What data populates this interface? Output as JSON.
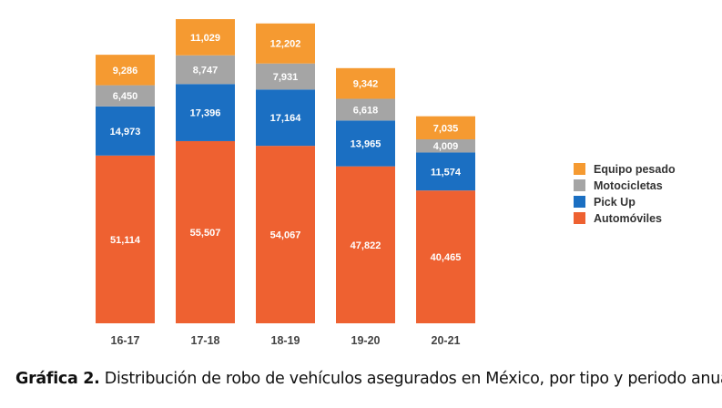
{
  "chart_data": {
    "type": "bar",
    "stacked": true,
    "title": "",
    "xlabel": "",
    "ylabel": "",
    "categories": [
      "16-17",
      "17-18",
      "18-19",
      "19-20",
      "20-21"
    ],
    "series": [
      {
        "name": "Automóviles",
        "color": "#EE6131",
        "values": [
          51114,
          55507,
          54067,
          47822,
          40465
        ],
        "labels": [
          "51,114",
          "55,507",
          "54,067",
          "47,822",
          "40,465"
        ]
      },
      {
        "name": "Pick Up",
        "color": "#1B6FC2",
        "values": [
          14973,
          17396,
          17164,
          13965,
          11574
        ],
        "labels": [
          "14,973",
          "17,396",
          "17,164",
          "13,965",
          "11,574"
        ]
      },
      {
        "name": "Motocicletas",
        "color": "#A5A5A5",
        "values": [
          6450,
          8747,
          7931,
          6618,
          4009
        ],
        "labels": [
          "6,450",
          "8,747",
          "7,931",
          "6,618",
          "4,009"
        ]
      },
      {
        "name": "Equipo pesado",
        "color": "#F59A31",
        "values": [
          9286,
          11029,
          12202,
          9342,
          7035
        ],
        "labels": [
          "9,286",
          "11,029",
          "12,202",
          "9,342",
          "7,035"
        ]
      }
    ],
    "legend": {
      "placement": "right",
      "order": [
        "Equipo pesado",
        "Motocicletas",
        "Pick Up",
        "Automóviles"
      ]
    },
    "grid": false
  },
  "caption": {
    "label": "Gráfica 2.",
    "text": " Distribución de robo de vehículos asegurados en México, por tipo y periodo anual."
  }
}
